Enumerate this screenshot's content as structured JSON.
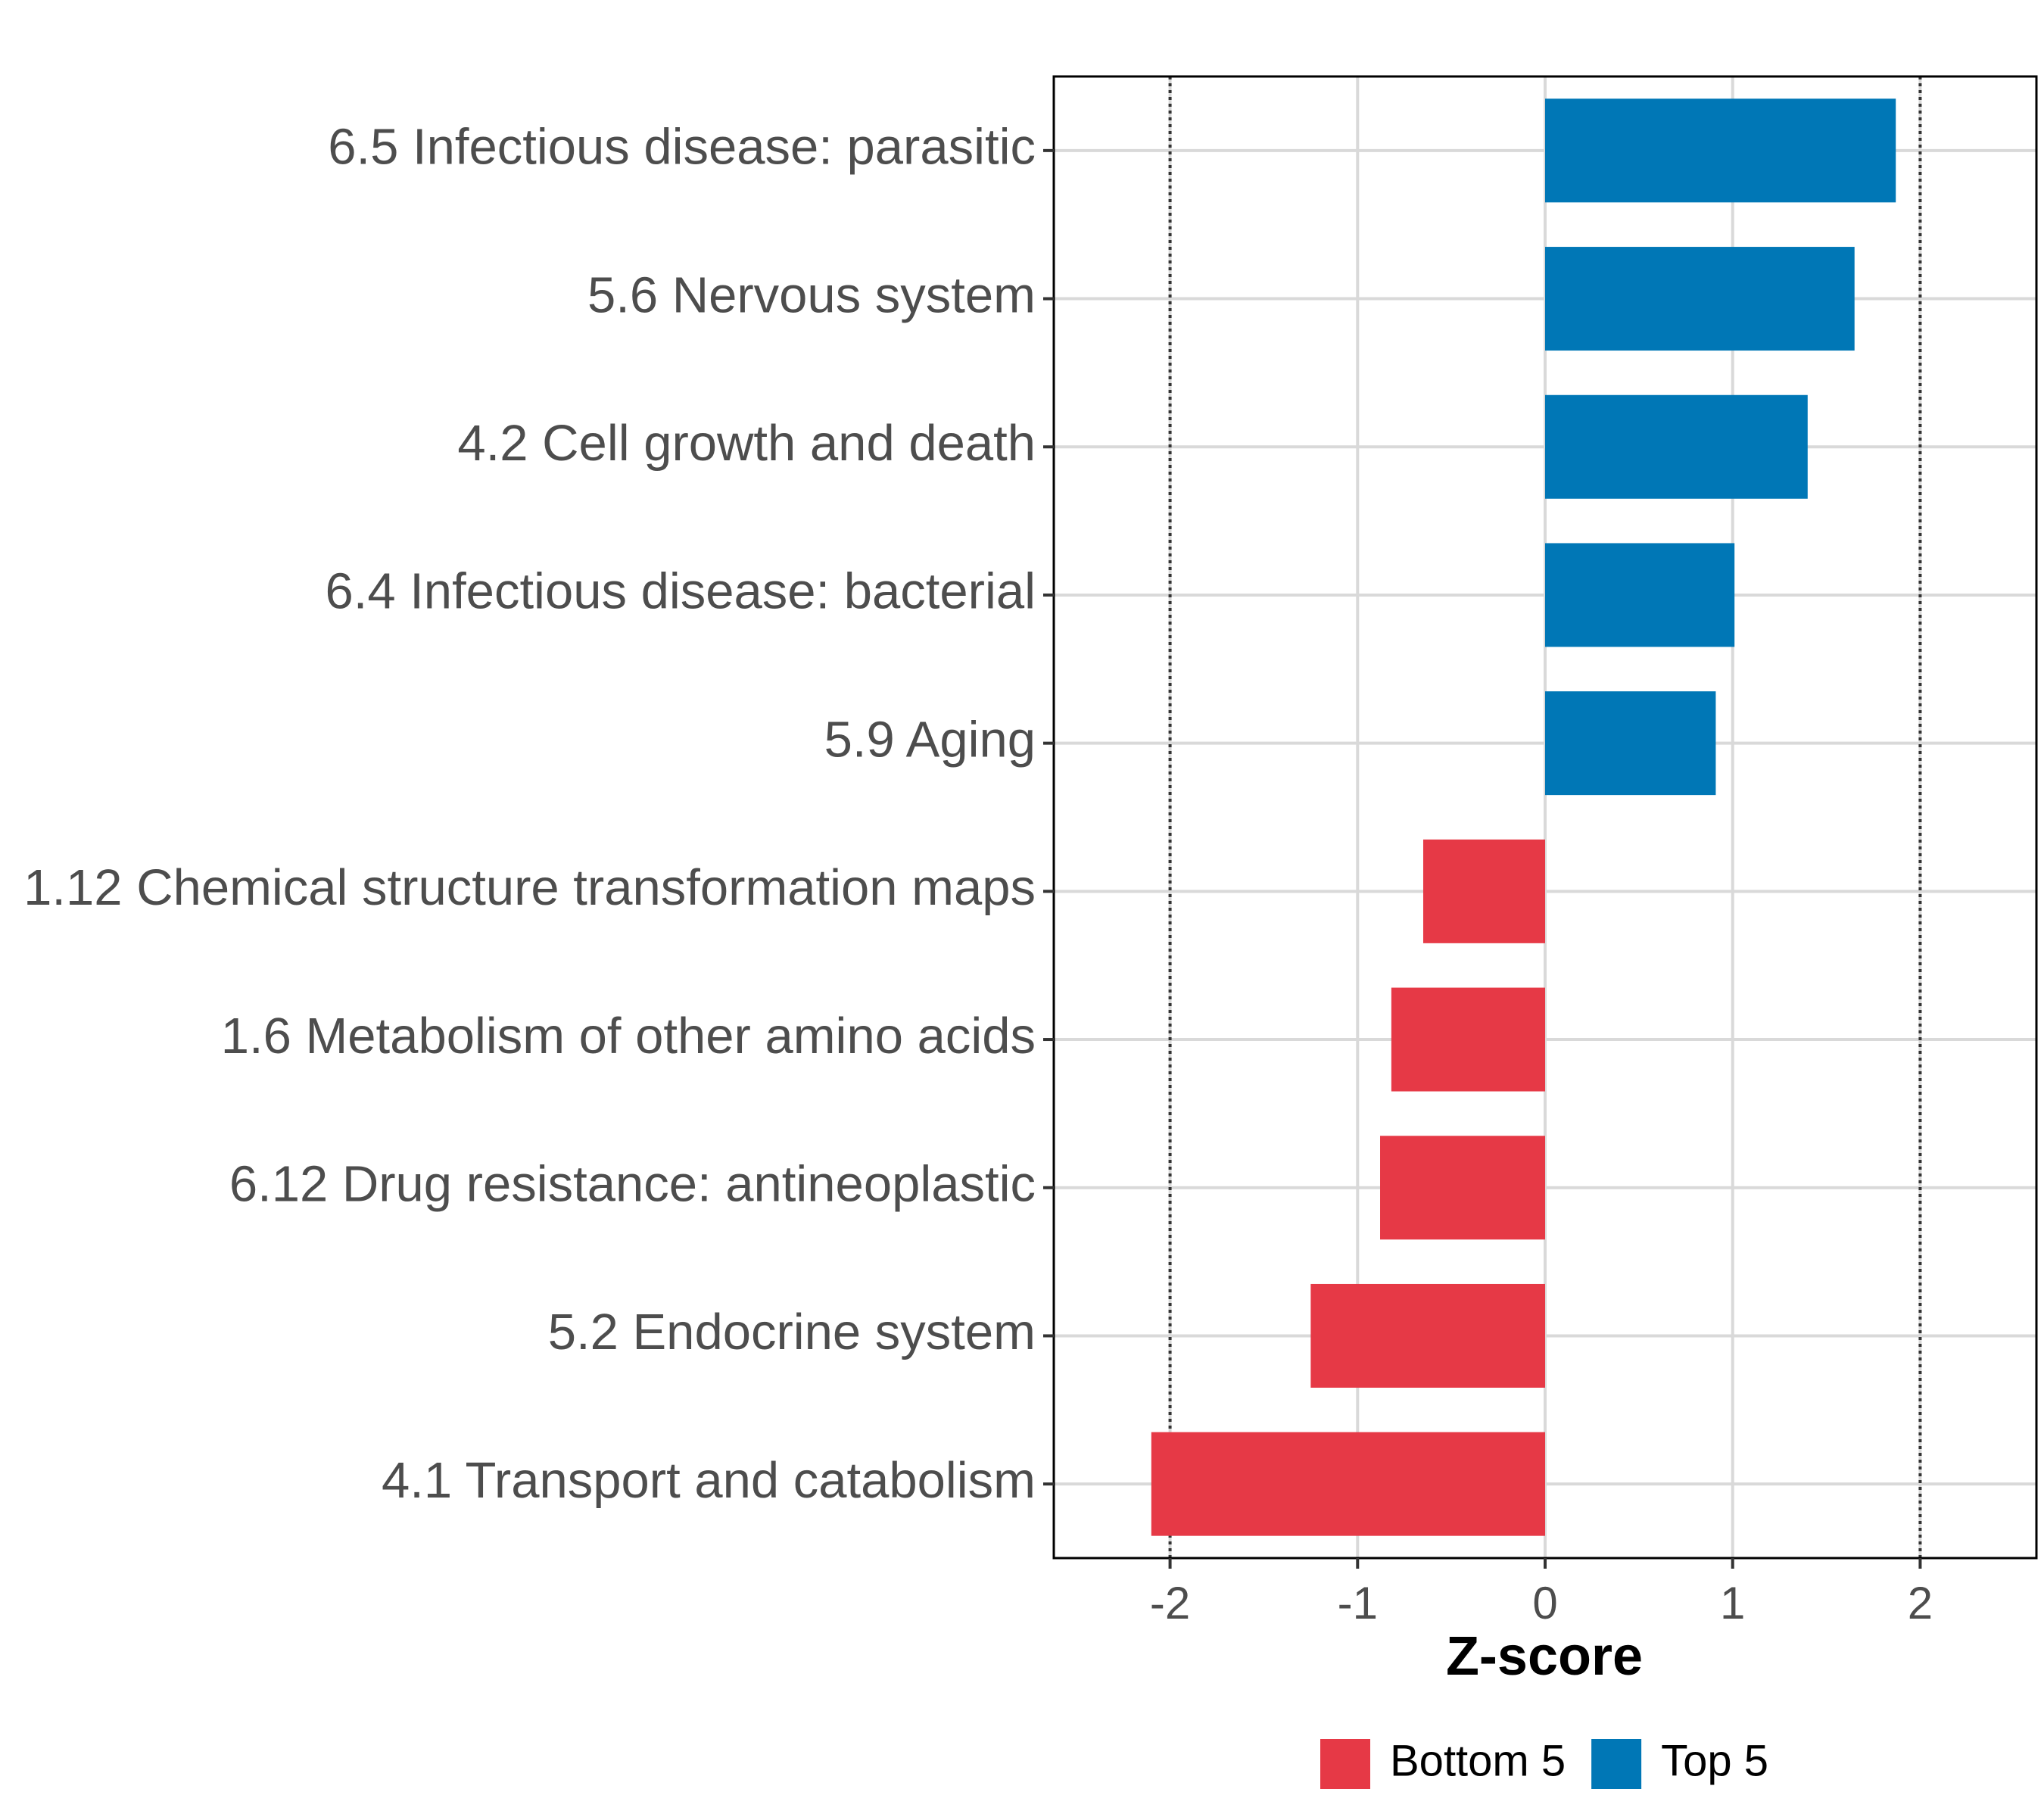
{
  "chart_data": {
    "type": "bar",
    "orientation": "horizontal",
    "categories": [
      "6.5 Infectious disease: parasitic",
      "5.6 Nervous system",
      "4.2 Cell growth and death",
      "6.4 Infectious disease: bacterial",
      "5.9 Aging",
      "1.12 Chemical structure transformation maps",
      "1.6 Metabolism of other amino acids",
      "6.12 Drug resistance: antineoplastic",
      "5.2 Endocrine system",
      "4.1 Transport and catabolism"
    ],
    "values": [
      1.87,
      1.65,
      1.4,
      1.01,
      0.91,
      -0.65,
      -0.82,
      -0.88,
      -1.25,
      -2.1
    ],
    "groups": [
      "Top 5",
      "Top 5",
      "Top 5",
      "Top 5",
      "Top 5",
      "Bottom 5",
      "Bottom 5",
      "Bottom 5",
      "Bottom 5",
      "Bottom 5"
    ],
    "xlabel": "Z-score",
    "ylabel": "",
    "xlim": [
      -2.62,
      2.62
    ],
    "xticks": [
      -2,
      -1,
      0,
      1,
      2
    ],
    "xtick_labels": [
      "-2",
      "-1",
      "0",
      "1",
      "2"
    ],
    "reference_lines": [
      -2,
      2
    ],
    "grid": true,
    "legend": {
      "position": "bottom",
      "entries": [
        {
          "label": "Bottom 5",
          "color": "#e63946"
        },
        {
          "label": "Top 5",
          "color": "#0077b6"
        }
      ]
    }
  }
}
